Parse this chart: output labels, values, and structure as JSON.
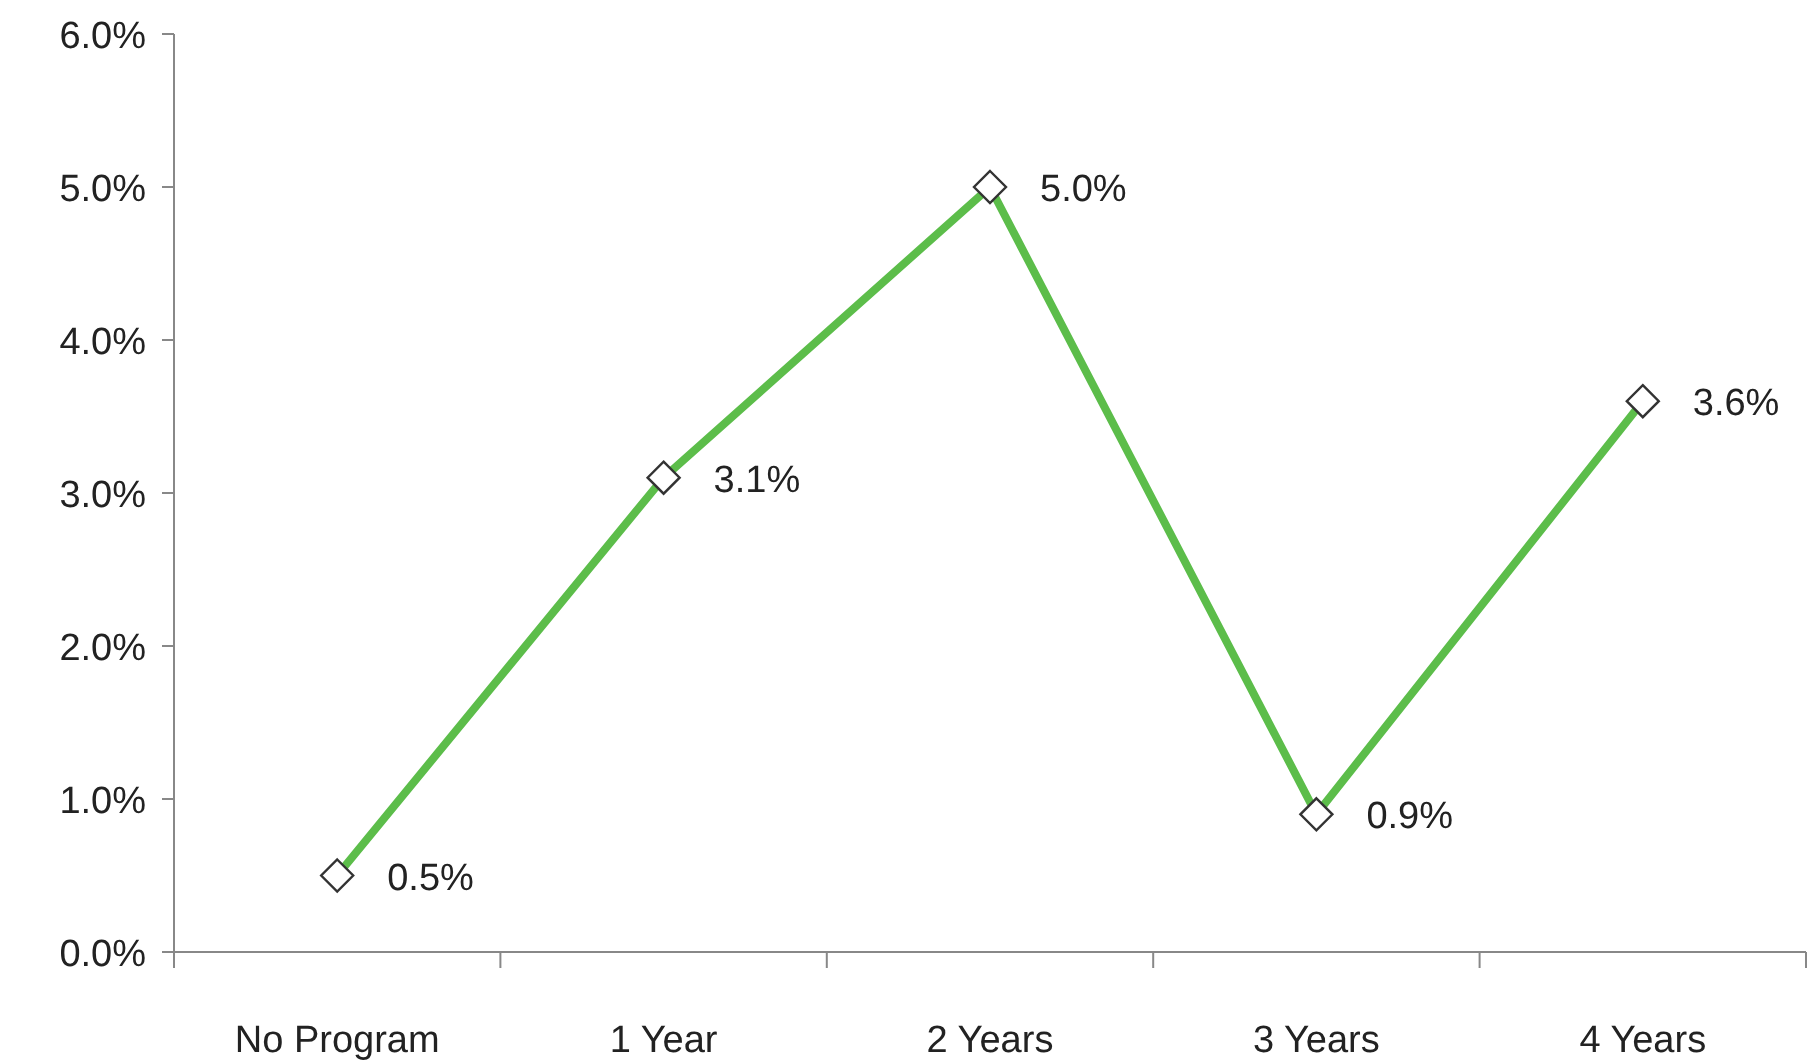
{
  "chart_data": {
    "type": "line",
    "categories": [
      "No Program",
      "1 Year",
      "2 Years",
      "3 Years",
      "4 Years"
    ],
    "series": [
      {
        "color": "#5cbd4a",
        "values": [
          0.5,
          3.1,
          5.0,
          0.9,
          3.6
        ],
        "value_labels": [
          "0.5%",
          "3.1%",
          "5.0%",
          "0.9%",
          "3.6%"
        ]
      }
    ],
    "ylim": [
      0,
      6
    ],
    "yticks": [
      {
        "value": 0,
        "label": "0.0%"
      },
      {
        "value": 1,
        "label": "1.0%"
      },
      {
        "value": 2,
        "label": "2.0%"
      },
      {
        "value": 3,
        "label": "3.0%"
      },
      {
        "value": 4,
        "label": "4.0%"
      },
      {
        "value": 5,
        "label": "5.0%"
      },
      {
        "value": 6,
        "label": "6.0%"
      }
    ],
    "grid": false,
    "marker": "diamond",
    "line_style": "solid"
  }
}
